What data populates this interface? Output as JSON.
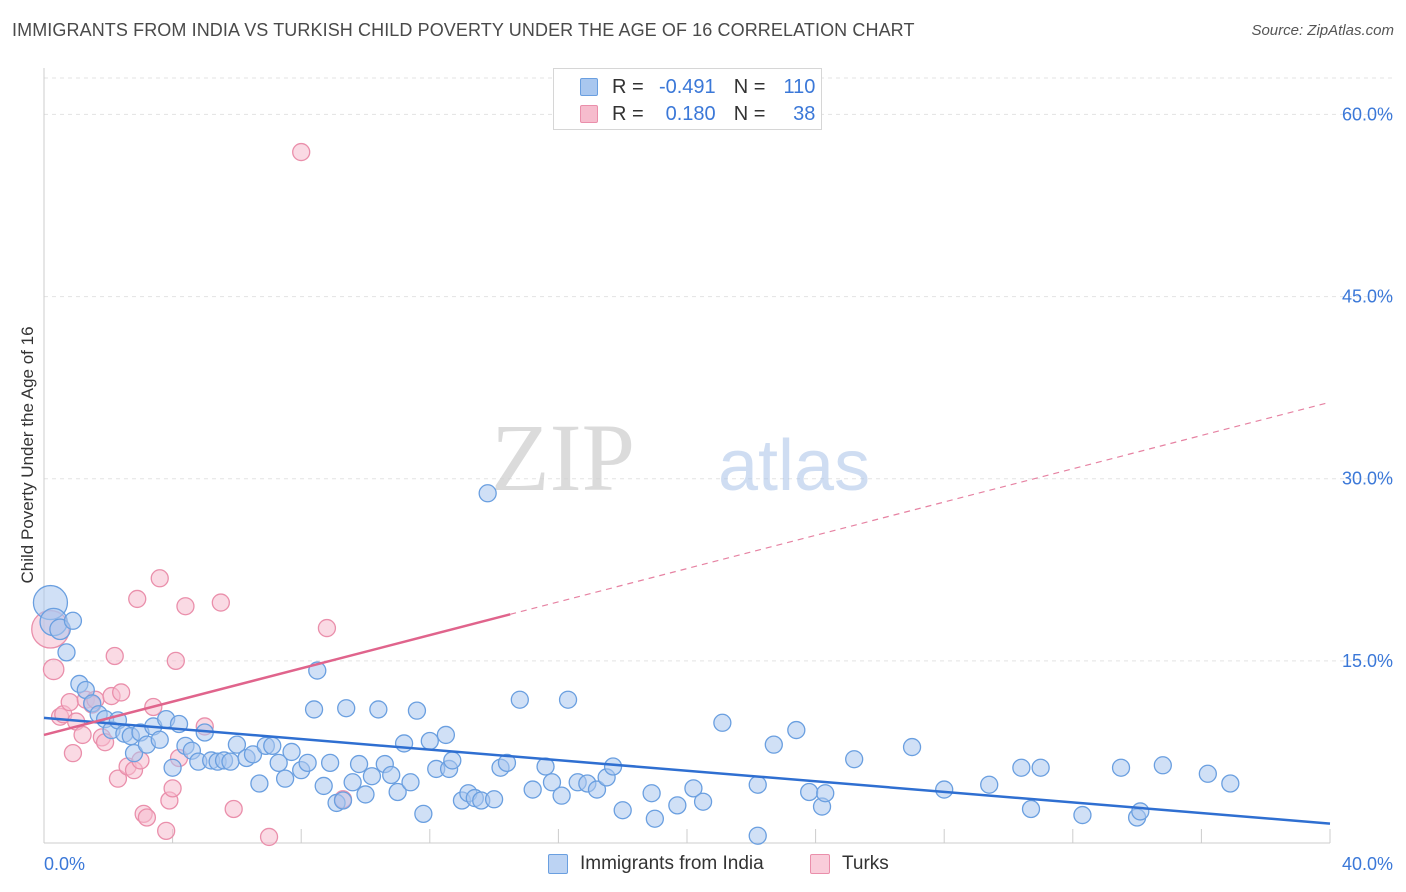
{
  "header": {
    "title": "IMMIGRANTS FROM INDIA VS TURKISH CHILD POVERTY UNDER THE AGE OF 16 CORRELATION CHART",
    "source": "Source: ZipAtlas.com"
  },
  "watermark": {
    "zip": "ZIP",
    "atlas": "atlas"
  },
  "legend": {
    "india": {
      "r_label": "R =",
      "r_value": "-0.491",
      "n_label": "N =",
      "n_value": "110"
    },
    "turks": {
      "r_label": "R =",
      "r_value": "0.180",
      "n_label": "N =",
      "n_value": "38"
    }
  },
  "bottom_legend": {
    "india": "Immigrants from India",
    "turks": "Turks"
  },
  "colors": {
    "india_fill": "#a9c7ef",
    "india_stroke": "#6a9fe0",
    "india_line": "#2f6fd1",
    "turks_fill": "#f6bccd",
    "turks_stroke": "#ea8fab",
    "turks_line": "#e0648c",
    "tick_label": "#3b78d8",
    "grid": "#e3e3e3"
  },
  "chart_data": {
    "type": "scatter",
    "title": "IMMIGRANTS FROM INDIA VS TURKISH CHILD POVERTY UNDER THE AGE OF 16 CORRELATION CHART",
    "xlabel": "",
    "ylabel": "Child Poverty Under the Age of 16",
    "xlim": [
      0,
      40
    ],
    "ylim": [
      0,
      63
    ],
    "x_tick_labels": [
      {
        "value": 0,
        "label": "0.0%"
      },
      {
        "value": 40,
        "label": "40.0%"
      }
    ],
    "y_tick_labels": [
      {
        "value": 15,
        "label": "15.0%"
      },
      {
        "value": 30,
        "label": "30.0%"
      },
      {
        "value": 45,
        "label": "45.0%"
      },
      {
        "value": 60,
        "label": "60.0%"
      }
    ],
    "grid": true,
    "legend_position": "top-center",
    "series": [
      {
        "name": "Immigrants from India",
        "R": -0.491,
        "N": 110,
        "trend": {
          "x0": 0,
          "y0": 10.3,
          "x1": 40,
          "y1": 1.6,
          "solid_until_x": 40
        },
        "points": [
          {
            "x": 0.2,
            "y": 19.8,
            "s": 2
          },
          {
            "x": 0.3,
            "y": 18.2,
            "s": 1.6
          },
          {
            "x": 0.5,
            "y": 17.6,
            "s": 1.2
          },
          {
            "x": 0.7,
            "y": 15.7,
            "s": 1
          },
          {
            "x": 0.9,
            "y": 18.3,
            "s": 1
          },
          {
            "x": 1.1,
            "y": 13.1,
            "s": 1
          },
          {
            "x": 1.3,
            "y": 12.6,
            "s": 1
          },
          {
            "x": 1.5,
            "y": 11.5,
            "s": 1
          },
          {
            "x": 1.7,
            "y": 10.6,
            "s": 1
          },
          {
            "x": 1.9,
            "y": 10.2,
            "s": 1
          },
          {
            "x": 2.1,
            "y": 9.3,
            "s": 1
          },
          {
            "x": 2.3,
            "y": 10.1,
            "s": 1
          },
          {
            "x": 2.5,
            "y": 9.0,
            "s": 1
          },
          {
            "x": 2.7,
            "y": 8.8,
            "s": 1
          },
          {
            "x": 2.8,
            "y": 7.4,
            "s": 1
          },
          {
            "x": 3.0,
            "y": 9.1,
            "s": 1
          },
          {
            "x": 3.2,
            "y": 8.1,
            "s": 1
          },
          {
            "x": 3.4,
            "y": 9.6,
            "s": 1
          },
          {
            "x": 3.6,
            "y": 8.5,
            "s": 1
          },
          {
            "x": 3.8,
            "y": 10.2,
            "s": 1
          },
          {
            "x": 4.0,
            "y": 6.2,
            "s": 1
          },
          {
            "x": 4.2,
            "y": 9.8,
            "s": 1
          },
          {
            "x": 4.4,
            "y": 8.0,
            "s": 1
          },
          {
            "x": 4.6,
            "y": 7.6,
            "s": 1
          },
          {
            "x": 4.8,
            "y": 6.7,
            "s": 1
          },
          {
            "x": 5.0,
            "y": 9.1,
            "s": 1
          },
          {
            "x": 5.2,
            "y": 6.8,
            "s": 1
          },
          {
            "x": 5.4,
            "y": 6.7,
            "s": 1
          },
          {
            "x": 5.6,
            "y": 6.8,
            "s": 1
          },
          {
            "x": 5.8,
            "y": 6.7,
            "s": 1
          },
          {
            "x": 6.0,
            "y": 8.1,
            "s": 1
          },
          {
            "x": 6.3,
            "y": 7.0,
            "s": 1
          },
          {
            "x": 6.5,
            "y": 7.3,
            "s": 1
          },
          {
            "x": 6.7,
            "y": 4.9,
            "s": 1
          },
          {
            "x": 6.9,
            "y": 8.0,
            "s": 1
          },
          {
            "x": 7.1,
            "y": 8.0,
            "s": 1
          },
          {
            "x": 7.3,
            "y": 6.6,
            "s": 1
          },
          {
            "x": 7.5,
            "y": 5.3,
            "s": 1
          },
          {
            "x": 7.7,
            "y": 7.5,
            "s": 1
          },
          {
            "x": 8.0,
            "y": 6.0,
            "s": 1
          },
          {
            "x": 8.2,
            "y": 6.6,
            "s": 1
          },
          {
            "x": 8.4,
            "y": 11.0,
            "s": 1
          },
          {
            "x": 8.5,
            "y": 14.2,
            "s": 1
          },
          {
            "x": 8.7,
            "y": 4.7,
            "s": 1
          },
          {
            "x": 8.9,
            "y": 6.6,
            "s": 1
          },
          {
            "x": 9.1,
            "y": 3.3,
            "s": 1
          },
          {
            "x": 9.3,
            "y": 3.5,
            "s": 1
          },
          {
            "x": 9.4,
            "y": 11.1,
            "s": 1
          },
          {
            "x": 9.6,
            "y": 5.0,
            "s": 1
          },
          {
            "x": 9.8,
            "y": 6.5,
            "s": 1
          },
          {
            "x": 10.0,
            "y": 4.0,
            "s": 1
          },
          {
            "x": 10.2,
            "y": 5.5,
            "s": 1
          },
          {
            "x": 10.4,
            "y": 11.0,
            "s": 1
          },
          {
            "x": 10.6,
            "y": 6.5,
            "s": 1
          },
          {
            "x": 10.8,
            "y": 5.6,
            "s": 1
          },
          {
            "x": 11.0,
            "y": 4.2,
            "s": 1
          },
          {
            "x": 11.2,
            "y": 8.2,
            "s": 1
          },
          {
            "x": 11.4,
            "y": 5.0,
            "s": 1
          },
          {
            "x": 11.6,
            "y": 10.9,
            "s": 1
          },
          {
            "x": 11.8,
            "y": 2.4,
            "s": 1
          },
          {
            "x": 12.0,
            "y": 8.4,
            "s": 1
          },
          {
            "x": 12.2,
            "y": 6.1,
            "s": 1
          },
          {
            "x": 12.5,
            "y": 8.9,
            "s": 1
          },
          {
            "x": 12.6,
            "y": 6.1,
            "s": 1
          },
          {
            "x": 12.7,
            "y": 6.8,
            "s": 1
          },
          {
            "x": 13.0,
            "y": 3.5,
            "s": 1
          },
          {
            "x": 13.2,
            "y": 4.1,
            "s": 1
          },
          {
            "x": 13.4,
            "y": 3.7,
            "s": 1
          },
          {
            "x": 13.6,
            "y": 3.5,
            "s": 1
          },
          {
            "x": 13.8,
            "y": 28.8,
            "s": 1
          },
          {
            "x": 14.0,
            "y": 3.6,
            "s": 1
          },
          {
            "x": 14.2,
            "y": 6.2,
            "s": 1
          },
          {
            "x": 14.4,
            "y": 6.6,
            "s": 1
          },
          {
            "x": 14.8,
            "y": 11.8,
            "s": 1
          },
          {
            "x": 15.2,
            "y": 4.4,
            "s": 1
          },
          {
            "x": 15.6,
            "y": 6.3,
            "s": 1
          },
          {
            "x": 15.8,
            "y": 5.0,
            "s": 1
          },
          {
            "x": 16.1,
            "y": 3.9,
            "s": 1
          },
          {
            "x": 16.3,
            "y": 11.8,
            "s": 1
          },
          {
            "x": 16.6,
            "y": 5.0,
            "s": 1
          },
          {
            "x": 16.9,
            "y": 4.9,
            "s": 1
          },
          {
            "x": 17.2,
            "y": 4.4,
            "s": 1
          },
          {
            "x": 17.5,
            "y": 5.4,
            "s": 1
          },
          {
            "x": 17.7,
            "y": 6.3,
            "s": 1
          },
          {
            "x": 18.0,
            "y": 2.7,
            "s": 1
          },
          {
            "x": 18.9,
            "y": 4.1,
            "s": 1
          },
          {
            "x": 19.0,
            "y": 2.0,
            "s": 1
          },
          {
            "x": 19.7,
            "y": 3.1,
            "s": 1
          },
          {
            "x": 20.2,
            "y": 4.5,
            "s": 1
          },
          {
            "x": 20.5,
            "y": 3.4,
            "s": 1
          },
          {
            "x": 21.1,
            "y": 9.9,
            "s": 1
          },
          {
            "x": 22.2,
            "y": 0.6,
            "s": 1
          },
          {
            "x": 22.2,
            "y": 4.8,
            "s": 1
          },
          {
            "x": 22.7,
            "y": 8.1,
            "s": 1
          },
          {
            "x": 23.4,
            "y": 9.3,
            "s": 1
          },
          {
            "x": 23.8,
            "y": 4.2,
            "s": 1
          },
          {
            "x": 24.2,
            "y": 3.0,
            "s": 1
          },
          {
            "x": 24.3,
            "y": 4.1,
            "s": 1
          },
          {
            "x": 25.2,
            "y": 6.9,
            "s": 1
          },
          {
            "x": 27.0,
            "y": 7.9,
            "s": 1
          },
          {
            "x": 28.0,
            "y": 4.4,
            "s": 1
          },
          {
            "x": 29.4,
            "y": 4.8,
            "s": 1
          },
          {
            "x": 30.4,
            "y": 6.2,
            "s": 1
          },
          {
            "x": 30.7,
            "y": 2.8,
            "s": 1
          },
          {
            "x": 31.0,
            "y": 6.2,
            "s": 1
          },
          {
            "x": 32.3,
            "y": 2.3,
            "s": 1
          },
          {
            "x": 33.5,
            "y": 6.2,
            "s": 1
          },
          {
            "x": 34.0,
            "y": 2.1,
            "s": 1
          },
          {
            "x": 34.1,
            "y": 2.6,
            "s": 1
          },
          {
            "x": 34.8,
            "y": 6.4,
            "s": 1
          },
          {
            "x": 36.2,
            "y": 5.7,
            "s": 1
          },
          {
            "x": 36.9,
            "y": 4.9,
            "s": 1
          }
        ]
      },
      {
        "name": "Turks",
        "R": 0.18,
        "N": 38,
        "trend": {
          "x0": 0,
          "y0": 8.9,
          "x1": 40,
          "y1": 36.3,
          "solid_until_x": 14.5
        },
        "points": [
          {
            "x": 0.2,
            "y": 17.6,
            "s": 2.2
          },
          {
            "x": 0.3,
            "y": 14.3,
            "s": 1.2
          },
          {
            "x": 0.5,
            "y": 10.4,
            "s": 1
          },
          {
            "x": 0.6,
            "y": 10.6,
            "s": 1
          },
          {
            "x": 0.8,
            "y": 11.6,
            "s": 1
          },
          {
            "x": 0.9,
            "y": 7.4,
            "s": 1
          },
          {
            "x": 1.0,
            "y": 10.0,
            "s": 1
          },
          {
            "x": 1.2,
            "y": 8.9,
            "s": 1
          },
          {
            "x": 1.3,
            "y": 11.8,
            "s": 1
          },
          {
            "x": 1.5,
            "y": 11.4,
            "s": 1
          },
          {
            "x": 1.6,
            "y": 11.8,
            "s": 1
          },
          {
            "x": 1.8,
            "y": 8.7,
            "s": 1
          },
          {
            "x": 1.9,
            "y": 8.3,
            "s": 1
          },
          {
            "x": 2.1,
            "y": 12.1,
            "s": 1
          },
          {
            "x": 2.2,
            "y": 15.4,
            "s": 1
          },
          {
            "x": 2.3,
            "y": 5.3,
            "s": 1
          },
          {
            "x": 2.4,
            "y": 12.4,
            "s": 1
          },
          {
            "x": 2.6,
            "y": 6.3,
            "s": 1
          },
          {
            "x": 2.8,
            "y": 6.0,
            "s": 1
          },
          {
            "x": 2.9,
            "y": 20.1,
            "s": 1
          },
          {
            "x": 3.0,
            "y": 6.8,
            "s": 1
          },
          {
            "x": 3.1,
            "y": 2.4,
            "s": 1
          },
          {
            "x": 3.2,
            "y": 2.1,
            "s": 1
          },
          {
            "x": 3.4,
            "y": 11.2,
            "s": 1
          },
          {
            "x": 3.6,
            "y": 21.8,
            "s": 1
          },
          {
            "x": 3.8,
            "y": 1.0,
            "s": 1
          },
          {
            "x": 3.9,
            "y": 3.5,
            "s": 1
          },
          {
            "x": 4.0,
            "y": 4.5,
            "s": 1
          },
          {
            "x": 4.1,
            "y": 15.0,
            "s": 1
          },
          {
            "x": 4.2,
            "y": 7.0,
            "s": 1
          },
          {
            "x": 4.4,
            "y": 19.5,
            "s": 1
          },
          {
            "x": 5.0,
            "y": 9.6,
            "s": 1
          },
          {
            "x": 5.5,
            "y": 19.8,
            "s": 1
          },
          {
            "x": 5.9,
            "y": 2.8,
            "s": 1
          },
          {
            "x": 7.0,
            "y": 0.5,
            "s": 1
          },
          {
            "x": 8.0,
            "y": 56.9,
            "s": 1
          },
          {
            "x": 8.8,
            "y": 17.7,
            "s": 1
          },
          {
            "x": 9.3,
            "y": 3.6,
            "s": 1
          }
        ]
      }
    ]
  }
}
